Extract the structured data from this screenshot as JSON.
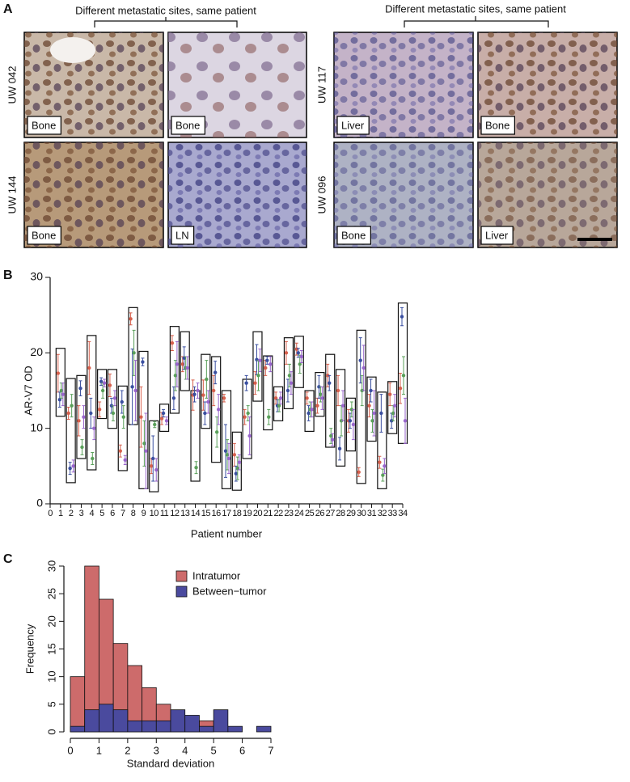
{
  "panel_a": {
    "label": "A",
    "groups": [
      {
        "caption": "Different metastatic sites, same patient",
        "rows": [
          {
            "patient": "UW 042",
            "sites": [
              "Bone",
              "Bone"
            ]
          },
          {
            "patient": "UW 144",
            "sites": [
              "Bone",
              "LN"
            ]
          }
        ]
      },
      {
        "caption": "Different metastatic sites, same patient",
        "rows": [
          {
            "patient": "UW 117",
            "sites": [
              "Liver",
              "Bone"
            ]
          },
          {
            "patient": "UW 096",
            "sites": [
              "Bone",
              "Liver"
            ]
          }
        ]
      }
    ]
  },
  "chart_data": [
    {
      "type": "boxdots",
      "label": "B",
      "ylabel": "AR-V7 OD",
      "xlabel": "Patient number",
      "x": [
        1,
        2,
        3,
        4,
        5,
        6,
        7,
        8,
        9,
        10,
        11,
        12,
        13,
        14,
        15,
        16,
        17,
        18,
        19,
        20,
        21,
        22,
        23,
        24,
        25,
        26,
        27,
        28,
        29,
        30,
        31,
        32,
        33,
        34
      ],
      "xlim": [
        0,
        34
      ],
      "xticks": [
        0,
        1,
        2,
        3,
        4,
        5,
        6,
        7,
        8,
        9,
        10,
        11,
        12,
        13,
        14,
        15,
        16,
        17,
        18,
        19,
        20,
        21,
        22,
        23,
        24,
        25,
        26,
        27,
        28,
        29,
        30,
        31,
        32,
        33,
        34
      ],
      "ylim": [
        0,
        30
      ],
      "yticks": [
        0,
        10,
        20,
        30
      ],
      "boxes": [
        [
          11.6,
          20.6
        ],
        [
          2.8,
          16.6
        ],
        [
          6,
          17
        ],
        [
          4.5,
          22.3
        ],
        [
          11.3,
          17.8
        ],
        [
          10,
          17.8
        ],
        [
          4.4,
          15.6
        ],
        [
          10.5,
          26
        ],
        [
          2,
          20.2
        ],
        [
          1.6,
          11
        ],
        [
          9.6,
          13.2
        ],
        [
          12,
          23.5
        ],
        [
          15,
          22.8
        ],
        [
          3,
          15
        ],
        [
          10,
          19.8
        ],
        [
          5.5,
          19.5
        ],
        [
          2,
          15
        ],
        [
          1.8,
          9.5
        ],
        [
          6,
          16.5
        ],
        [
          13.6,
          22.8
        ],
        [
          9.8,
          19.6
        ],
        [
          11,
          15.5
        ],
        [
          12.6,
          22
        ],
        [
          15.4,
          22.2
        ],
        [
          9.6,
          15
        ],
        [
          11.6,
          17.4
        ],
        [
          7.5,
          19.8
        ],
        [
          5,
          17.8
        ],
        [
          7,
          14
        ],
        [
          2.7,
          23
        ],
        [
          8.3,
          16.8
        ],
        [
          2,
          14.8
        ],
        [
          9.3,
          16.2
        ],
        [
          8,
          26.6
        ]
      ],
      "series": [
        {
          "color": "#d6604d",
          "values": [
            17.3,
            12,
            11,
            18,
            12.5,
            15.7,
            7,
            24.5,
            11.5,
            5,
            11.3,
            21.3,
            18.5,
            14.4,
            14.4,
            15,
            14,
            6.5,
            11.5,
            16,
            18,
            14,
            20,
            20.5,
            14,
            13,
            17,
            15,
            11,
            4.2,
            13,
            5.5,
            14.5,
            15.3
          ],
          "errors": [
            2.5,
            0.8,
            2,
            3.5,
            1,
            1.5,
            0.8,
            0.8,
            4,
            1,
            0.8,
            1,
            1,
            2,
            2,
            2,
            0.5,
            1.5,
            1,
            1.5,
            1,
            0.8,
            1.5,
            0.8,
            0.8,
            1,
            1.5,
            2,
            1.5,
            0.6,
            1.5,
            0.8,
            1.5,
            2
          ]
        },
        {
          "color": "#3a4fa0",
          "values": [
            13.8,
            4.7,
            15.3,
            12,
            16.2,
            13,
            13.5,
            15.5,
            18.8,
            6,
            12,
            14,
            19.3,
            14.5,
            12,
            17.4,
            7,
            4,
            16,
            19.1,
            19,
            13,
            15,
            20,
            12,
            15.5,
            16,
            7.3,
            11,
            19,
            15,
            12,
            11,
            24.8
          ],
          "errors": [
            1,
            0.8,
            1,
            2,
            0.5,
            1,
            1.5,
            5,
            0.5,
            3,
            0.5,
            1.5,
            1.5,
            1,
            1.5,
            1.5,
            3.5,
            1,
            1,
            2,
            0.5,
            0.8,
            1.5,
            0.6,
            1,
            1.5,
            1,
            1.5,
            1,
            3,
            1.5,
            2.5,
            1,
            1.2
          ]
        },
        {
          "color": "#5aa05a",
          "values": [
            15,
            13,
            7.5,
            6,
            15,
            12,
            11.5,
            20,
            8,
            10.5,
            null,
            17,
            18,
            4.8,
            16.5,
            9.5,
            6.5,
            4.7,
            12,
            17,
            11.5,
            13,
            17,
            18.5,
            12.5,
            14.5,
            9,
            11,
            12.5,
            15,
            11,
            3.8,
            12,
            17
          ],
          "errors": [
            1,
            1.5,
            1,
            0.8,
            1,
            1,
            1.5,
            3,
            3,
            0.4,
            null,
            2,
            1.5,
            0.8,
            2.5,
            2,
            2,
            1.5,
            1,
            2,
            1,
            0.8,
            1.5,
            1.2,
            1,
            1,
            1,
            2,
            1,
            2,
            1.5,
            0.8,
            1,
            2.5
          ]
        },
        {
          "color": "#9966cc",
          "values": [
            14.5,
            5,
            11.5,
            10,
            16,
            14,
            5.8,
            15,
            7,
            4.5,
            11,
            18.5,
            18,
            15,
            13.5,
            12.5,
            6,
            5.5,
            9,
            19,
            18.5,
            14,
            16,
            19.5,
            12.5,
            14,
            8.5,
            13,
            10.5,
            18,
            12,
            5,
            13,
            11
          ],
          "errors": [
            1.5,
            0.8,
            1.5,
            1.5,
            0.5,
            1,
            0.6,
            4,
            5,
            1.5,
            0.5,
            3,
            1.5,
            1,
            1.5,
            2,
            2,
            1,
            2.5,
            1.5,
            1,
            0.8,
            1.5,
            0.8,
            1,
            1.5,
            0.8,
            2,
            2,
            3,
            3,
            1,
            1.5,
            3
          ]
        }
      ]
    },
    {
      "type": "histogram",
      "label": "C",
      "ylabel": "Frequency",
      "xlabel": "Standard deviation",
      "bins": [
        0,
        0.5,
        1,
        1.5,
        2,
        2.5,
        3,
        3.5,
        4,
        4.5,
        5,
        5.5,
        6,
        6.5,
        7
      ],
      "xlim": [
        0,
        7
      ],
      "xticks": [
        0,
        1,
        2,
        3,
        4,
        5,
        6,
        7
      ],
      "ylim": [
        0,
        30
      ],
      "yticks": [
        0,
        5,
        10,
        15,
        20,
        25,
        30
      ],
      "legend": "top-right",
      "series": [
        {
          "name": "Intratumor",
          "color": "#cd6b6b",
          "values": [
            10,
            30,
            24,
            16,
            12,
            8,
            5,
            3,
            1,
            2,
            0,
            0,
            0,
            0
          ]
        },
        {
          "name": "Between−tumor",
          "color": "#4a4a9e",
          "values": [
            1,
            4,
            5,
            4,
            2,
            2,
            2,
            4,
            3,
            1,
            4,
            1,
            0,
            1
          ]
        }
      ]
    }
  ]
}
